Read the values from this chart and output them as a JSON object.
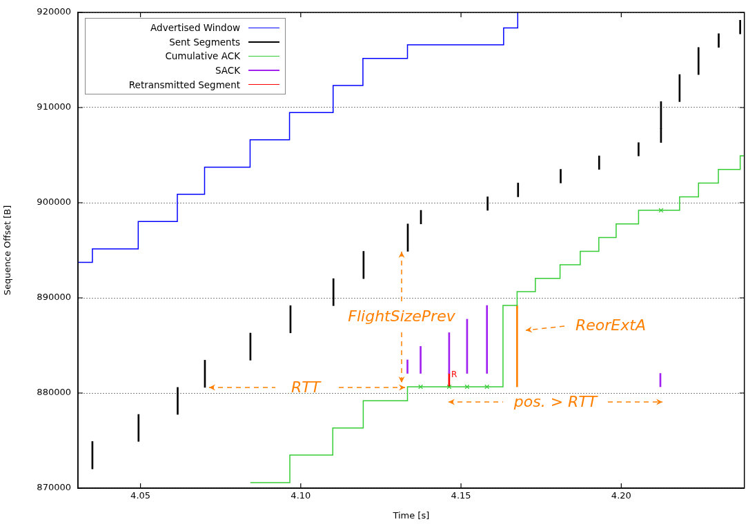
{
  "chart_data": {
    "type": "scatter",
    "xlabel": "Time [s]",
    "ylabel": "Sequence Offset [B]",
    "xlim": [
      4.0305,
      4.2384
    ],
    "ylim": [
      870000,
      920000
    ],
    "xticks": [
      4.05,
      {
        "value": 4.1,
        "label": "4.10"
      },
      4.15,
      {
        "value": 4.2,
        "label": "4.20"
      }
    ],
    "yticks": [
      870000,
      880000,
      890000,
      900000,
      910000,
      920000
    ],
    "grid": "y",
    "legend": "top left",
    "marker": "none",
    "series": [
      {
        "name": "Advertised Window",
        "type": "step",
        "color": "#0000ff",
        "x": [
          4.0305,
          4.035,
          4.0493,
          4.0615,
          4.07,
          4.0842,
          4.0965,
          4.1101,
          4.1194,
          4.1333,
          4.1633,
          4.1677
        ],
        "values": [
          893730,
          895150,
          898030,
          900880,
          903740,
          906610,
          909470,
          912310,
          915170,
          916590,
          918370,
          920000
        ]
      },
      {
        "name": "Sent Segments",
        "type": "bar",
        "color": "#000000",
        "x": [
          4.035,
          4.0494,
          4.0616,
          4.0701,
          4.0843,
          4.0968,
          4.1102,
          4.1196,
          4.1334,
          4.1375,
          4.1583,
          4.1678,
          4.1811,
          4.1931,
          4.2054,
          4.2124,
          4.2182,
          4.2241,
          4.2304,
          4.2371
        ],
        "base": [
          872020,
          874910,
          877750,
          880590,
          883450,
          886320,
          889180,
          892020,
          894890,
          897770,
          899200,
          900620,
          902070,
          903500,
          904920,
          906320,
          910620,
          913470,
          916330,
          917750
        ],
        "values": [
          2890,
          2840,
          2840,
          2860,
          2850,
          2860,
          2840,
          2870,
          2880,
          1430,
          1420,
          1450,
          1430,
          1420,
          1400,
          1460,
          2850,
          2850,
          1430,
          1420
        ]
      },
      {
        "type": "bar",
        "color": "#000000",
        "x": [
          4.2124
        ],
        "base": [
          907780
        ],
        "values": [
          2840
        ]
      },
      {
        "name": "Cumulative ACK",
        "type": "step",
        "color": "#33cc33",
        "x": [
          4.0843,
          4.0966,
          4.11,
          4.1195,
          4.1333,
          4.1631,
          4.1675,
          4.1732,
          4.1809,
          4.1872,
          4.193,
          4.1984,
          4.2054,
          4.2182,
          4.2241,
          4.2303,
          4.2371,
          4.2384
        ],
        "values": [
          870580,
          873470,
          876330,
          879190,
          880650,
          889200,
          890650,
          892040,
          893470,
          894890,
          896340,
          897770,
          899200,
          900620,
          902070,
          903500,
          904920,
          904920
        ]
      },
      {
        "name": "SACK",
        "type": "bar",
        "color": "#a020f0",
        "x": [
          4.1333,
          4.1374,
          4.1463,
          4.1519,
          4.1581,
          4.2122
        ],
        "base": [
          882060,
          882060,
          882060,
          882060,
          882060,
          880650
        ],
        "values": [
          1420,
          2840,
          4280,
          5700,
          7140,
          1410
        ]
      },
      {
        "name": "Retransmitted Segment",
        "type": "bar",
        "color": "#ff0000",
        "x": [
          4.1463
        ],
        "base": [
          880650
        ],
        "values": [
          1410
        ],
        "value_labels": [
          "R"
        ]
      },
      {
        "type": "scatter",
        "color": "#33cc33",
        "marker": "cross",
        "x": [
          4.1374,
          4.1463,
          4.1519,
          4.1581,
          4.2124
        ],
        "values": [
          880650,
          880650,
          880650,
          880650,
          899200
        ]
      },
      {
        "type": "bar",
        "color": "#ff8000",
        "x": [
          4.1675
        ],
        "base": [
          880650
        ],
        "values": [
          8550
        ]
      }
    ],
    "annotations": [
      "FlightSizePrev",
      "RTT",
      "ReorExtA",
      "pos. > RTT"
    ]
  }
}
